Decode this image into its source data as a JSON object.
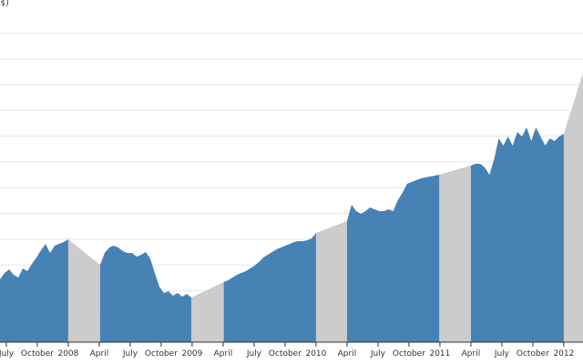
{
  "chart_data": {
    "type": "area",
    "title": "",
    "ylabel": "($)",
    "xlabel": "",
    "xlim": [
      2007.449,
      2012.155
    ],
    "ylim": [
      0,
      376
    ],
    "grid": true,
    "colors": {
      "data": "#4682b4",
      "gap": "#cccccc",
      "grid": "#e6e6e6",
      "axis": "#333333"
    },
    "segments": [
      {
        "start": 2007.449,
        "end": 2008.0,
        "values": [
          69,
          76,
          80,
          74,
          71,
          81,
          78,
          86,
          93,
          101,
          108,
          98,
          106,
          108,
          110,
          113
        ]
      },
      {
        "start": 2008.257,
        "end": 2008.993,
        "values": [
          85,
          98,
          104,
          106,
          104,
          100,
          98,
          98,
          94,
          96,
          99,
          92,
          76,
          61,
          54,
          56,
          51,
          54,
          50,
          53,
          49
        ]
      },
      {
        "start": 2009.255,
        "end": 2010.0,
        "values": [
          66,
          68,
          71,
          74,
          76,
          78,
          81,
          84,
          88,
          93,
          96,
          99,
          102,
          104,
          106,
          108,
          110,
          111,
          111,
          112,
          114,
          120
        ]
      },
      {
        "start": 2010.25,
        "end": 2010.995,
        "values": [
          133,
          151,
          144,
          141,
          144,
          148,
          146,
          144,
          144,
          146,
          144,
          156,
          164,
          174,
          176,
          178,
          180,
          181,
          182,
          183,
          184
        ]
      },
      {
        "start": 2011.25,
        "end": 2012.0,
        "values": [
          194,
          196,
          196,
          192,
          184,
          201,
          224,
          216,
          226,
          216,
          231,
          226,
          236,
          221,
          236,
          226,
          216,
          224,
          221,
          226,
          229
        ]
      }
    ],
    "trailing_point": {
      "x": 2012.155,
      "value": 296
    },
    "x_ticks": [
      {
        "x": 2007.5,
        "label": "July"
      },
      {
        "x": 2007.75,
        "label": "October"
      },
      {
        "x": 2008.0,
        "label": "2008"
      },
      {
        "x": 2008.25,
        "label": "April"
      },
      {
        "x": 2008.5,
        "label": "July"
      },
      {
        "x": 2008.75,
        "label": "October"
      },
      {
        "x": 2009.0,
        "label": "2009"
      },
      {
        "x": 2009.25,
        "label": "April"
      },
      {
        "x": 2009.5,
        "label": "July"
      },
      {
        "x": 2009.75,
        "label": "October"
      },
      {
        "x": 2010.0,
        "label": "2010"
      },
      {
        "x": 2010.25,
        "label": "April"
      },
      {
        "x": 2010.5,
        "label": "July"
      },
      {
        "x": 2010.75,
        "label": "October"
      },
      {
        "x": 2011.0,
        "label": "2011"
      },
      {
        "x": 2011.25,
        "label": "April"
      },
      {
        "x": 2011.5,
        "label": "July"
      },
      {
        "x": 2011.75,
        "label": "October"
      },
      {
        "x": 2012.0,
        "label": "2012"
      }
    ]
  }
}
